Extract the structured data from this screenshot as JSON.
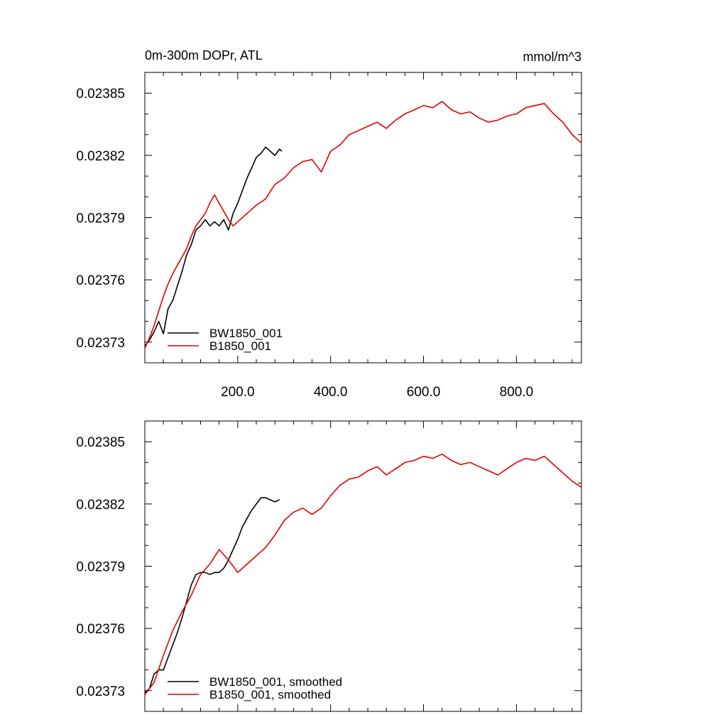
{
  "chart_data": [
    {
      "type": "line",
      "title": "0m-300m DOPr, ATL",
      "units": "mmol/m^3",
      "xlim": [
        0,
        940
      ],
      "ylim": [
        0.02372,
        0.02386
      ],
      "x_ticks": [
        200,
        400,
        600,
        800
      ],
      "x_tick_labels": [
        "200.0",
        "400.0",
        "600.0",
        "800.0"
      ],
      "y_ticks": [
        0.02373,
        0.02376,
        0.02379,
        0.02382,
        0.02385
      ],
      "y_tick_labels": [
        "0.02373",
        "0.02376",
        "0.02379",
        "0.02382",
        "0.02385"
      ],
      "legend_position": "bottom-left",
      "series": [
        {
          "name": "BW1850_001",
          "color": "#000000",
          "x": [
            0,
            10,
            20,
            30,
            40,
            50,
            60,
            70,
            80,
            90,
            100,
            110,
            120,
            130,
            140,
            150,
            160,
            170,
            180,
            190,
            200,
            210,
            220,
            230,
            240,
            250,
            260,
            270,
            280,
            290,
            295
          ],
          "y": [
            0.023728,
            0.023731,
            0.023735,
            0.02374,
            0.023734,
            0.023746,
            0.02375,
            0.023757,
            0.023764,
            0.023772,
            0.023777,
            0.023784,
            0.023786,
            0.023789,
            0.023786,
            0.023788,
            0.023786,
            0.023789,
            0.023784,
            0.023792,
            0.023797,
            0.023803,
            0.023809,
            0.023814,
            0.023819,
            0.023821,
            0.023824,
            0.023822,
            0.02382,
            0.023823,
            0.023822
          ]
        },
        {
          "name": "B1850_001",
          "color": "#e00000",
          "x": [
            0,
            10,
            20,
            30,
            40,
            50,
            60,
            70,
            80,
            90,
            100,
            110,
            120,
            130,
            140,
            150,
            160,
            170,
            180,
            190,
            200,
            220,
            240,
            260,
            280,
            300,
            320,
            340,
            360,
            380,
            400,
            420,
            440,
            460,
            480,
            500,
            520,
            540,
            560,
            580,
            600,
            620,
            640,
            660,
            680,
            700,
            720,
            740,
            760,
            780,
            800,
            820,
            840,
            860,
            880,
            900,
            920,
            940
          ],
          "y": [
            0.023727,
            0.023732,
            0.023738,
            0.023745,
            0.023752,
            0.023758,
            0.023763,
            0.023767,
            0.023771,
            0.023775,
            0.023781,
            0.023786,
            0.023789,
            0.023792,
            0.023797,
            0.023801,
            0.023797,
            0.023793,
            0.023789,
            0.023786,
            0.023788,
            0.023792,
            0.023796,
            0.023799,
            0.023806,
            0.023809,
            0.023814,
            0.023817,
            0.023818,
            0.023812,
            0.023822,
            0.023825,
            0.02383,
            0.023832,
            0.023834,
            0.023836,
            0.023833,
            0.023837,
            0.02384,
            0.023842,
            0.023844,
            0.023843,
            0.023846,
            0.023842,
            0.02384,
            0.023841,
            0.023838,
            0.023836,
            0.023837,
            0.023839,
            0.02384,
            0.023843,
            0.023844,
            0.023845,
            0.02384,
            0.023836,
            0.02383,
            0.023826
          ]
        }
      ]
    },
    {
      "type": "line",
      "xlim": [
        0,
        940
      ],
      "ylim": [
        0.02372,
        0.02386
      ],
      "x_ticks": [
        200,
        400,
        600,
        800
      ],
      "y_ticks": [
        0.02373,
        0.02376,
        0.02379,
        0.02382,
        0.02385
      ],
      "y_tick_labels": [
        "0.02373",
        "0.02376",
        "0.02379",
        "0.02382",
        "0.02385"
      ],
      "legend_position": "bottom-left",
      "series": [
        {
          "name": "BW1850_001, smoothed",
          "color": "#000000",
          "x": [
            0,
            10,
            20,
            30,
            40,
            50,
            60,
            70,
            80,
            90,
            100,
            110,
            120,
            130,
            140,
            150,
            160,
            170,
            180,
            190,
            200,
            210,
            220,
            230,
            240,
            250,
            260,
            270,
            280,
            290
          ],
          "y": [
            0.023729,
            0.023731,
            0.023738,
            0.02374,
            0.02374,
            0.023746,
            0.023752,
            0.023758,
            0.023765,
            0.023773,
            0.023781,
            0.023786,
            0.023787,
            0.023787,
            0.023786,
            0.023787,
            0.023787,
            0.023789,
            0.023793,
            0.023798,
            0.023803,
            0.023809,
            0.023813,
            0.023817,
            0.02382,
            0.023823,
            0.023823,
            0.023822,
            0.023821,
            0.023822
          ]
        },
        {
          "name": "B1850_001, smoothed",
          "color": "#e00000",
          "x": [
            0,
            20,
            40,
            60,
            80,
            100,
            120,
            140,
            160,
            180,
            200,
            220,
            240,
            260,
            280,
            300,
            320,
            340,
            360,
            380,
            400,
            420,
            440,
            460,
            480,
            500,
            520,
            540,
            560,
            580,
            600,
            620,
            640,
            660,
            680,
            700,
            720,
            740,
            760,
            780,
            800,
            820,
            840,
            860,
            880,
            900,
            920,
            940
          ],
          "y": [
            0.023728,
            0.023734,
            0.023747,
            0.023759,
            0.023768,
            0.023776,
            0.023786,
            0.023791,
            0.023798,
            0.023793,
            0.023787,
            0.023791,
            0.023795,
            0.023799,
            0.023805,
            0.023812,
            0.023816,
            0.023818,
            0.023815,
            0.023818,
            0.023824,
            0.023829,
            0.023832,
            0.023833,
            0.023836,
            0.023838,
            0.023834,
            0.023837,
            0.02384,
            0.023841,
            0.023843,
            0.023842,
            0.023844,
            0.023841,
            0.023839,
            0.02384,
            0.023838,
            0.023836,
            0.023834,
            0.023837,
            0.02384,
            0.023842,
            0.023841,
            0.023843,
            0.023839,
            0.023835,
            0.023831,
            0.023828
          ]
        }
      ]
    }
  ]
}
